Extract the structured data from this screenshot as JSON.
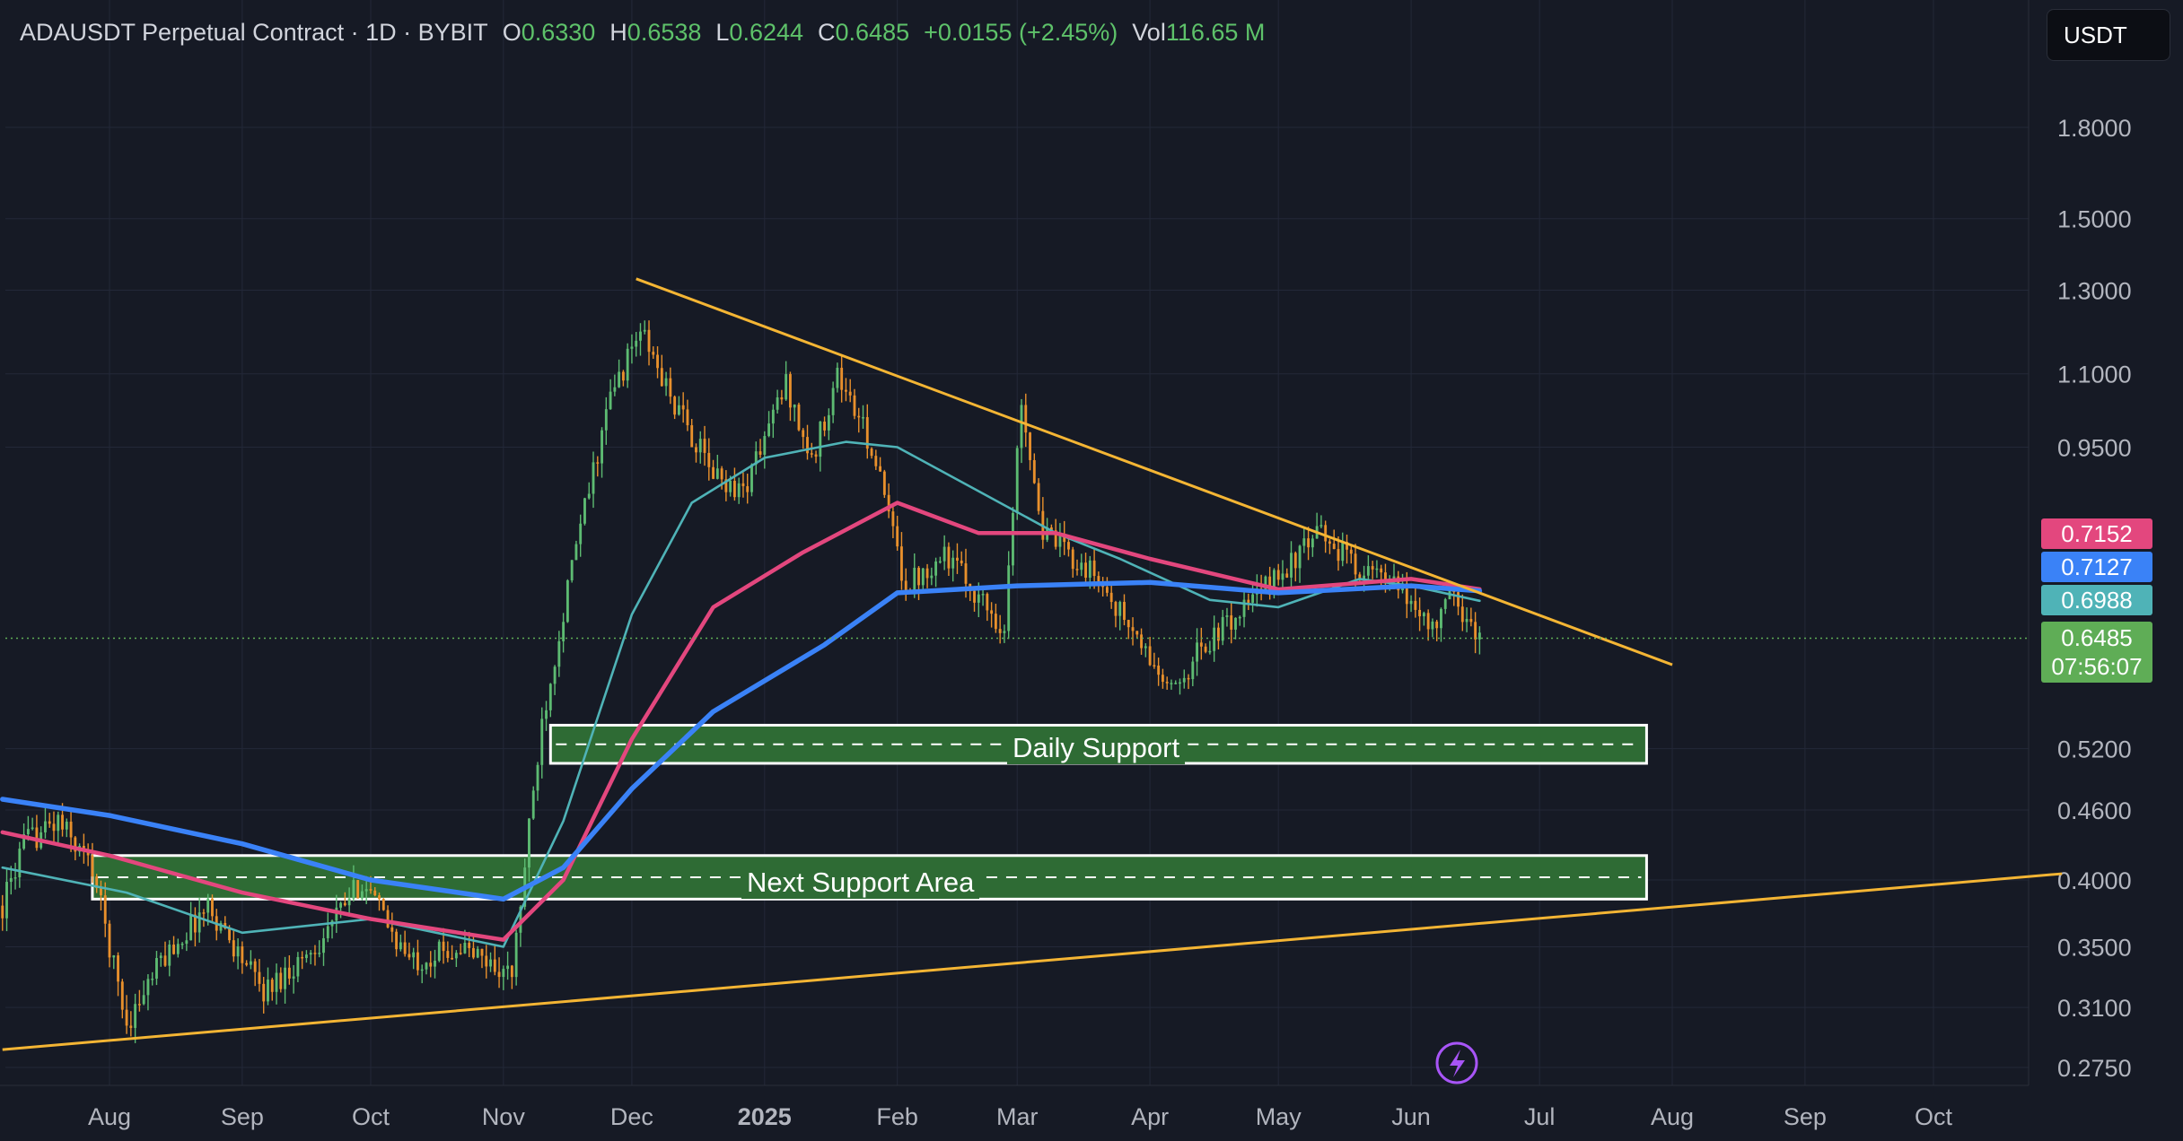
{
  "header": {
    "title": "ADAUSDT Perpetual Contract · 1D · BYBIT",
    "open_label": "O",
    "open": "0.6330",
    "high_label": "H",
    "high": "0.6538",
    "low_label": "L",
    "low": "0.6244",
    "close_label": "C",
    "close": "0.6485",
    "change": "+0.0155 (+2.45%)",
    "vol_label": "Vol",
    "vol": "116.65 M"
  },
  "currency_button": "USDT",
  "price_tags": {
    "ma_pink": "0.7152",
    "ma_blue": "0.7127",
    "ma_cyan": "0.6988",
    "current_price": "0.6485",
    "countdown": "07:56:07"
  },
  "zones": {
    "daily_support": "Daily Support",
    "next_support": "Next Support Area"
  },
  "colors": {
    "background": "#161a25",
    "grid": "#232838",
    "candle_up": "#5dbb72",
    "candle_down": "#e8902c",
    "ma_cyan": "#4fb3b7",
    "ma_pink": "#e3477e",
    "ma_blue": "#3a82f7",
    "trendline": "#f4b534",
    "zone_fill": "#2e6b34",
    "current_tag": "#5fad56"
  },
  "icons": {
    "flash": "lightning-bolt-icon"
  },
  "chart_data": {
    "type": "candlestick",
    "symbol": "ADAUSDT",
    "interval": "1D",
    "exchange": "BYBIT",
    "y_scale": "log",
    "y_ticks": [
      1.8,
      1.5,
      1.3,
      1.1,
      0.95,
      0.52,
      0.46,
      0.4,
      0.35,
      0.31,
      0.275
    ],
    "y_tick_labels": [
      "1.8000",
      "1.5000",
      "1.3000",
      "1.1000",
      "0.9500",
      "0.5200",
      "0.4600",
      "0.4000",
      "0.3500",
      "0.3100",
      "0.2750"
    ],
    "x_ticks": [
      "2024-08-01",
      "2024-09-01",
      "2024-10-01",
      "2024-11-01",
      "2024-12-01",
      "2025-01-01",
      "2025-02-01",
      "2025-03-01",
      "2025-04-01",
      "2025-05-01",
      "2025-06-01",
      "2025-07-01",
      "2025-08-01",
      "2025-09-01",
      "2025-10-01"
    ],
    "x_tick_labels": [
      "Aug",
      "Sep",
      "Oct",
      "Nov",
      "Dec",
      "2025",
      "Feb",
      "Mar",
      "Apr",
      "May",
      "Jun",
      "Jul",
      "Aug",
      "Sep",
      "Oct"
    ],
    "x_range": [
      "2024-07-07",
      "2025-10-31"
    ],
    "y_range": [
      0.26,
      2.05
    ],
    "grid": true,
    "price_path_keypoints": [
      {
        "date": "2024-07-07",
        "price": 0.38
      },
      {
        "date": "2024-07-12",
        "price": 0.43
      },
      {
        "date": "2024-07-20",
        "price": 0.45
      },
      {
        "date": "2024-07-28",
        "price": 0.41
      },
      {
        "date": "2024-08-05",
        "price": 0.3
      },
      {
        "date": "2024-08-13",
        "price": 0.34
      },
      {
        "date": "2024-08-24",
        "price": 0.38
      },
      {
        "date": "2024-09-06",
        "price": 0.32
      },
      {
        "date": "2024-09-18",
        "price": 0.35
      },
      {
        "date": "2024-09-29",
        "price": 0.4
      },
      {
        "date": "2024-10-10",
        "price": 0.34
      },
      {
        "date": "2024-10-22",
        "price": 0.35
      },
      {
        "date": "2024-11-03",
        "price": 0.33
      },
      {
        "date": "2024-11-10",
        "price": 0.55
      },
      {
        "date": "2024-11-18",
        "price": 0.78
      },
      {
        "date": "2024-11-26",
        "price": 1.05
      },
      {
        "date": "2024-12-03",
        "price": 1.2
      },
      {
        "date": "2024-12-10",
        "price": 1.05
      },
      {
        "date": "2024-12-20",
        "price": 0.9
      },
      {
        "date": "2024-12-27",
        "price": 0.87
      },
      {
        "date": "2025-01-06",
        "price": 1.08
      },
      {
        "date": "2025-01-12",
        "price": 0.92
      },
      {
        "date": "2025-01-18",
        "price": 1.1
      },
      {
        "date": "2025-01-26",
        "price": 0.95
      },
      {
        "date": "2025-02-03",
        "price": 0.72
      },
      {
        "date": "2025-02-12",
        "price": 0.77
      },
      {
        "date": "2025-02-26",
        "price": 0.66
      },
      {
        "date": "2025-03-02",
        "price": 1.05
      },
      {
        "date": "2025-03-07",
        "price": 0.8
      },
      {
        "date": "2025-03-20",
        "price": 0.73
      },
      {
        "date": "2025-04-06",
        "price": 0.58
      },
      {
        "date": "2025-04-12",
        "price": 0.63
      },
      {
        "date": "2025-04-25",
        "price": 0.7
      },
      {
        "date": "2025-05-11",
        "price": 0.8
      },
      {
        "date": "2025-05-19",
        "price": 0.75
      },
      {
        "date": "2025-05-28",
        "price": 0.72
      },
      {
        "date": "2025-06-07",
        "price": 0.66
      },
      {
        "date": "2025-06-10",
        "price": 0.71
      },
      {
        "date": "2025-06-17",
        "price": 0.6485
      }
    ],
    "moving_averages": [
      {
        "key": "ma_cyan",
        "points": [
          {
            "date": "2024-07-07",
            "price": 0.41
          },
          {
            "date": "2024-08-05",
            "price": 0.39
          },
          {
            "date": "2024-09-01",
            "price": 0.36
          },
          {
            "date": "2024-10-01",
            "price": 0.37
          },
          {
            "date": "2024-11-01",
            "price": 0.35
          },
          {
            "date": "2024-11-15",
            "price": 0.45
          },
          {
            "date": "2024-12-01",
            "price": 0.68
          },
          {
            "date": "2024-12-15",
            "price": 0.85
          },
          {
            "date": "2025-01-01",
            "price": 0.93
          },
          {
            "date": "2025-01-20",
            "price": 0.96
          },
          {
            "date": "2025-02-01",
            "price": 0.95
          },
          {
            "date": "2025-02-20",
            "price": 0.87
          },
          {
            "date": "2025-03-10",
            "price": 0.8
          },
          {
            "date": "2025-03-25",
            "price": 0.76
          },
          {
            "date": "2025-04-15",
            "price": 0.7
          },
          {
            "date": "2025-05-01",
            "price": 0.69
          },
          {
            "date": "2025-05-20",
            "price": 0.73
          },
          {
            "date": "2025-06-01",
            "price": 0.72
          },
          {
            "date": "2025-06-17",
            "price": 0.6988
          }
        ]
      },
      {
        "key": "ma_pink",
        "points": [
          {
            "date": "2024-07-07",
            "price": 0.44
          },
          {
            "date": "2024-08-01",
            "price": 0.42
          },
          {
            "date": "2024-09-01",
            "price": 0.39
          },
          {
            "date": "2024-10-01",
            "price": 0.37
          },
          {
            "date": "2024-11-01",
            "price": 0.355
          },
          {
            "date": "2024-11-15",
            "price": 0.4
          },
          {
            "date": "2024-12-01",
            "price": 0.53
          },
          {
            "date": "2024-12-20",
            "price": 0.69
          },
          {
            "date": "2025-01-10",
            "price": 0.77
          },
          {
            "date": "2025-02-01",
            "price": 0.85
          },
          {
            "date": "2025-02-20",
            "price": 0.8
          },
          {
            "date": "2025-03-10",
            "price": 0.8
          },
          {
            "date": "2025-04-01",
            "price": 0.76
          },
          {
            "date": "2025-05-01",
            "price": 0.715
          },
          {
            "date": "2025-06-01",
            "price": 0.73
          },
          {
            "date": "2025-06-17",
            "price": 0.7152
          }
        ]
      },
      {
        "key": "ma_blue",
        "points": [
          {
            "date": "2024-07-07",
            "price": 0.47
          },
          {
            "date": "2024-08-01",
            "price": 0.455
          },
          {
            "date": "2024-09-01",
            "price": 0.43
          },
          {
            "date": "2024-10-01",
            "price": 0.4
          },
          {
            "date": "2024-11-01",
            "price": 0.385
          },
          {
            "date": "2024-11-15",
            "price": 0.41
          },
          {
            "date": "2024-12-01",
            "price": 0.48
          },
          {
            "date": "2024-12-20",
            "price": 0.56
          },
          {
            "date": "2025-01-15",
            "price": 0.64
          },
          {
            "date": "2025-02-01",
            "price": 0.71
          },
          {
            "date": "2025-03-01",
            "price": 0.72
          },
          {
            "date": "2025-04-01",
            "price": 0.725
          },
          {
            "date": "2025-05-01",
            "price": 0.71
          },
          {
            "date": "2025-06-01",
            "price": 0.72
          },
          {
            "date": "2025-06-17",
            "price": 0.7127
          }
        ]
      }
    ],
    "trendlines": [
      {
        "name": "descending resistance",
        "start": {
          "date": "2024-12-02",
          "price": 1.33
        },
        "end": {
          "date": "2025-08-01",
          "price": 0.615
        }
      },
      {
        "name": "ascending support",
        "start": {
          "date": "2024-07-07",
          "price": 0.285
        },
        "end": {
          "date": "2025-10-31",
          "price": 0.405
        }
      }
    ],
    "zones": [
      {
        "label": "Daily Support",
        "from_date": "2024-11-12",
        "to_date": "2025-07-26",
        "low": 0.505,
        "high": 0.545
      },
      {
        "label": "Next Support Area",
        "from_date": "2024-07-28",
        "to_date": "2025-07-26",
        "low": 0.385,
        "high": 0.42
      }
    ],
    "current_price": 0.6485
  }
}
